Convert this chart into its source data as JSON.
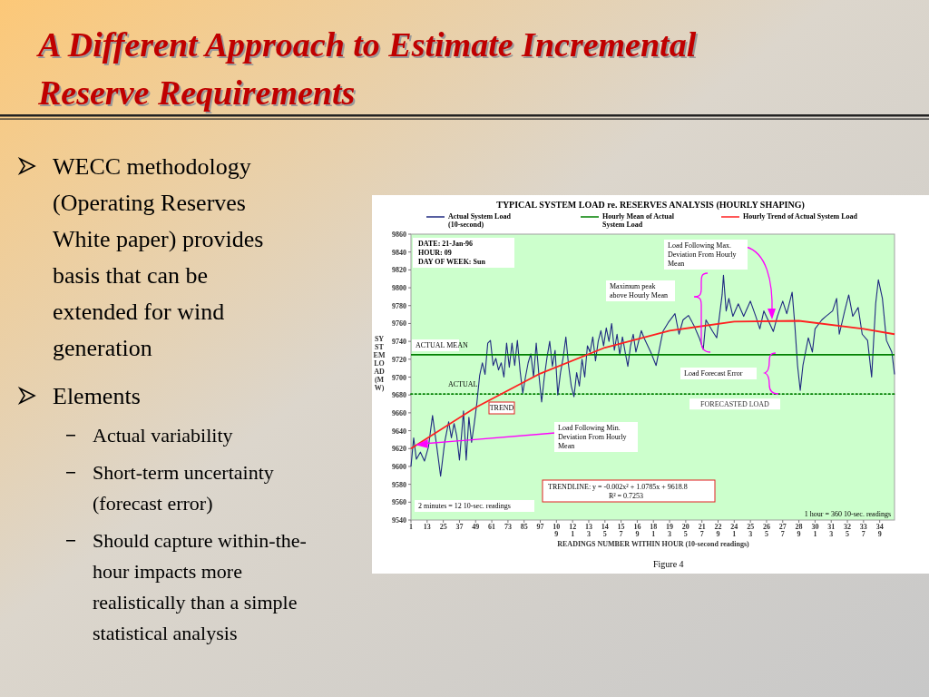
{
  "chart_data": {
    "type": "line",
    "title": "TYPICAL SYSTEM LOAD re. RESERVES ANALYSIS (HOURLY SHAPING)",
    "xlabel": "READINGS NUMBER WITHIN HOUR (10-second readings)",
    "ylabel": "SYSTEM LOAD (MW)",
    "xlim": [
      1,
      360
    ],
    "ylim": [
      9540,
      9860
    ],
    "xticks": [
      1,
      13,
      25,
      37,
      49,
      61,
      73,
      85,
      97,
      109,
      121,
      133,
      145,
      157,
      169,
      181,
      193,
      205,
      217,
      229,
      241,
      253,
      265,
      277,
      289,
      301,
      313,
      325,
      337,
      349
    ],
    "yticks": [
      9540,
      9560,
      9580,
      9600,
      9620,
      9640,
      9660,
      9680,
      9700,
      9720,
      9740,
      9760,
      9780,
      9800,
      9820,
      9840,
      9860
    ],
    "legend": "top",
    "marker": "none",
    "series": [
      {
        "name": "Actual System Load (10-second)",
        "color": "#1f2a80",
        "x": [
          1,
          3,
          5,
          8,
          11,
          14,
          17,
          20,
          23,
          26,
          29,
          31,
          33,
          35,
          37,
          40,
          42,
          44,
          46,
          48,
          50,
          52,
          54,
          56,
          58,
          60,
          62,
          64,
          66,
          68,
          70,
          72,
          74,
          76,
          78,
          80,
          82,
          84,
          86,
          88,
          90,
          92,
          94,
          96,
          98,
          100,
          102,
          104,
          106,
          108,
          110,
          112,
          114,
          116,
          118,
          120,
          122,
          124,
          126,
          128,
          130,
          132,
          134,
          136,
          138,
          140,
          142,
          144,
          146,
          148,
          150,
          152,
          154,
          156,
          158,
          160,
          162,
          164,
          166,
          168,
          170,
          172,
          174,
          179,
          183,
          188,
          192,
          197,
          200,
          203,
          207,
          211,
          215,
          218,
          220,
          225,
          228,
          232,
          233,
          235,
          237,
          240,
          244,
          248,
          253,
          257,
          260,
          263,
          267,
          270,
          273,
          277,
          280,
          284,
          286,
          288,
          290,
          292,
          296,
          299,
          301,
          306,
          309,
          314,
          317,
          319,
          323,
          326,
          329,
          333,
          336,
          340,
          343,
          346,
          348,
          351,
          354,
          358,
          360
        ],
        "values": [
          9600,
          9632,
          9608,
          9616,
          9606,
          9622,
          9657,
          9624,
          9589,
          9627,
          9650,
          9632,
          9648,
          9634,
          9607,
          9662,
          9607,
          9655,
          9627,
          9648,
          9672,
          9702,
          9716,
          9703,
          9738,
          9741,
          9713,
          9721,
          9708,
          9716,
          9700,
          9738,
          9711,
          9738,
          9713,
          9741,
          9707,
          9682,
          9700,
          9716,
          9726,
          9700,
          9738,
          9702,
          9672,
          9700,
          9722,
          9740,
          9712,
          9730,
          9680,
          9705,
          9722,
          9745,
          9713,
          9690,
          9678,
          9705,
          9690,
          9720,
          9700,
          9735,
          9728,
          9745,
          9718,
          9740,
          9752,
          9735,
          9755,
          9740,
          9760,
          9730,
          9748,
          9725,
          9745,
          9728,
          9712,
          9735,
          9748,
          9728,
          9740,
          9752,
          9744,
          9728,
          9713,
          9751,
          9761,
          9771,
          9748,
          9764,
          9769,
          9758,
          9744,
          9731,
          9764,
          9751,
          9744,
          9792,
          9814,
          9774,
          9788,
          9768,
          9782,
          9768,
          9785,
          9768,
          9754,
          9774,
          9761,
          9751,
          9768,
          9785,
          9771,
          9795,
          9758,
          9713,
          9685,
          9713,
          9744,
          9728,
          9754,
          9764,
          9768,
          9774,
          9788,
          9748,
          9774,
          9792,
          9768,
          9778,
          9748,
          9741,
          9700,
          9782,
          9809,
          9788,
          9741,
          9728,
          9703
        ]
      },
      {
        "name": "Hourly Mean of Actual System Load",
        "color": "#008000",
        "x": [
          1,
          360
        ],
        "values": [
          9725,
          9725
        ]
      },
      {
        "name": "Hourly Trend of Actual System Load",
        "color": "#ff2020",
        "x": [
          1,
          49,
          97,
          145,
          193,
          241,
          289,
          337,
          360
        ],
        "values": [
          9620,
          9666,
          9704,
          9733,
          9752,
          9762,
          9763,
          9754,
          9748
        ]
      }
    ],
    "ref_lines": [
      {
        "axis": "y",
        "value": 9681,
        "label": "FORECASTED LOAD",
        "color": "#008000",
        "line_style": "dotted"
      }
    ],
    "annotations": [
      "A Different Approach to Estimate Incremental Reserve Requirements",
      "WECC methodology (Operating Reserves White paper) provides basis that can be extended for wind generation",
      "Elements",
      "Actual variability",
      "Short-term uncertainty (forecast error)",
      "Should capture within-the-hour impacts more realistically than a simple statistical analysis",
      "DATE: 21-Jan-96",
      "HOUR: 09",
      "DAY OF WEEK: Sun",
      "Load Following Max. Deviation From Hourly Mean",
      "Maximum peak above Hourly Mean",
      "Load Forecast Error",
      "Load Following Min. Deviation From Hourly Mean",
      "TRENDLINE: y = -0.002x² + 1.0785x + 9618.8",
      "R² = 0.7253",
      "2 minutes = 12 10-sec. readings",
      "1 hour = 360 10-sec. readings",
      "ACTUAL MEAN",
      "ACTUAL",
      "TREND",
      "Figure 4"
    ]
  }
}
